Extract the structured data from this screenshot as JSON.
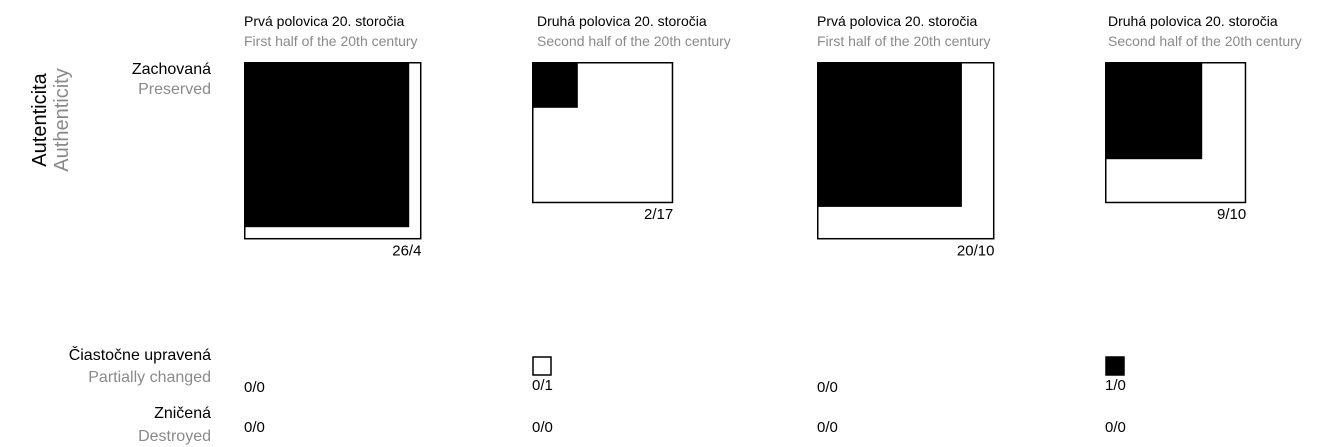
{
  "chart_data": {
    "type": "proportional-square-matrix",
    "y_axis": {
      "label": "Autenticita",
      "label_en": "Authenticity"
    },
    "columns": [
      {
        "label": "Prvá polovica 20. storočia",
        "label_en": "First half of the 20th century"
      },
      {
        "label": "Druhá polovica 20. storočia",
        "label_en": "Second half of the 20th century"
      },
      {
        "label": "Prvá polovica 20. storočia",
        "label_en": "First half of the 20th century"
      },
      {
        "label": "Druhá polovica 20. storočia",
        "label_en": "Second half of the 20th century"
      }
    ],
    "rows": [
      {
        "label": "Zachovaná",
        "label_en": "Preserved"
      },
      {
        "label": "Čiastočne upravená",
        "label_en": "Partially changed"
      },
      {
        "label": "Zničená",
        "label_en": "Destroyed"
      }
    ],
    "cells": [
      [
        {
          "label": "26/4",
          "a": 26,
          "b": 4
        },
        {
          "label": "2/17",
          "a": 2,
          "b": 17
        },
        {
          "label": "20/10",
          "a": 20,
          "b": 10
        },
        {
          "label": "9/10",
          "a": 9,
          "b": 10
        }
      ],
      [
        {
          "label": "0/0",
          "a": 0,
          "b": 0
        },
        {
          "label": "0/1",
          "a": 0,
          "b": 1
        },
        {
          "label": "0/0",
          "a": 0,
          "b": 0
        },
        {
          "label": "1/0",
          "a": 1,
          "b": 0
        }
      ],
      [
        {
          "label": "0/0",
          "a": 0,
          "b": 0
        },
        {
          "label": "0/0",
          "a": 0,
          "b": 0
        },
        {
          "label": "0/0",
          "a": 0,
          "b": 0
        },
        {
          "label": "0/0",
          "a": 0,
          "b": 0
        }
      ]
    ],
    "colors": {
      "filled": "#000000",
      "outline": "#000000",
      "background": "#ffffff"
    }
  }
}
